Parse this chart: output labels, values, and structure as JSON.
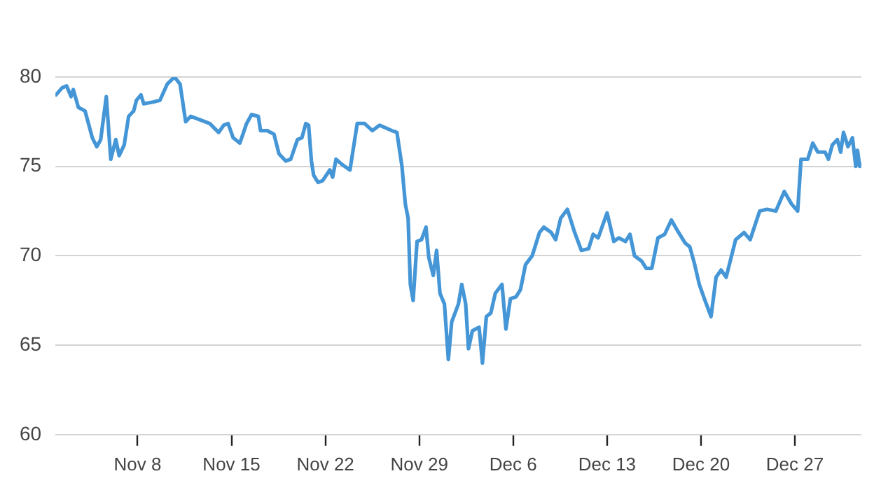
{
  "chart_data": {
    "type": "line",
    "x": [
      "--11-01T22:00",
      "--11-02T09:00",
      "--11-02T17:00",
      "--11-03T01:00",
      "--11-03T05:00",
      "--11-03T14:00",
      "--11-04T02:00",
      "--11-04T15:00",
      "--11-04T23:00",
      "--11-05T06:00",
      "--11-05T16:00",
      "--11-06T00:00",
      "--11-06T09:00",
      "--11-06T15:00",
      "--11-07T00:00",
      "--11-07T08:00",
      "--11-07T17:00",
      "--11-07T22:00",
      "--11-08T06:00",
      "--11-08T11:00",
      "--11-09T04:00",
      "--11-09T16:00",
      "--11-10T05:00",
      "--11-10T18:00",
      "--11-11T04:00",
      "--11-11T14:00",
      "--11-11T23:00",
      "--11-12T16:00",
      "--11-13T09:00",
      "--11-14T01:00",
      "--11-14T10:00",
      "--11-14T18:00",
      "--11-15T03:00",
      "--11-15T15:00",
      "--11-16T03:00",
      "--11-16T12:00",
      "--11-17T00:00",
      "--11-17T04:00",
      "--11-17T16:00",
      "--11-18T04:00",
      "--11-18T13:00",
      "--11-19T01:00",
      "--11-19T10:00",
      "--11-19T22:00",
      "--11-20T06:00",
      "--11-20T13:00",
      "--11-20T18:00",
      "--11-20T23:00",
      "--11-21T03:00",
      "--11-21T11:00",
      "--11-21T19:00",
      "--11-22T08:00",
      "--11-22T13:00",
      "--11-22T19:00",
      "--11-23T06:00",
      "--11-23T20:00",
      "--11-24T09:00",
      "--11-24T22:00",
      "--11-25T12:00",
      "--11-26T01:00",
      "--11-26T23:00",
      "--11-27T08:00",
      "--11-27T17:00",
      "--11-27T23:00",
      "--11-28T04:00",
      "--11-28T08:00",
      "--11-28T13:00",
      "--11-28T20:00",
      "--11-29T04:00",
      "--11-29T12:00",
      "--11-29T17:00",
      "--11-30T01:00",
      "--11-30T07:00",
      "--11-30T13:00",
      "--11-30T21:00",
      "--12-01T04:00",
      "--12-01T10:00",
      "--12-01T22:00",
      "--12-02T04:00",
      "--12-02T11:00",
      "--12-02T16:00",
      "--12-02T23:00",
      "--12-03T11:00",
      "--12-03T17:00",
      "--12-04T00:00",
      "--12-04T08:00",
      "--12-04T16:00",
      "--12-05T04:00",
      "--12-05T11:00",
      "--12-05T19:00",
      "--12-06T05:00",
      "--12-06T13:00",
      "--12-06T22:00",
      "--12-07T10:00",
      "--12-07T23:00",
      "--12-08T07:00",
      "--12-08T20:00",
      "--12-09T04:00",
      "--12-09T13:00",
      "--12-10T01:00",
      "--12-10T14:00",
      "--12-11T02:00",
      "--12-11T15:00",
      "--12-11T23:00",
      "--12-12T08:00",
      "--12-13T00:00",
      "--12-13T12:00",
      "--12-13T21:00",
      "--12-14T09:00",
      "--12-14T17:00",
      "--12-15T01:00",
      "--12-15T14:00",
      "--12-15T22:00",
      "--12-16T08:00",
      "--12-16T19:00",
      "--12-17T07:00",
      "--12-17T19:00",
      "--12-18T08:00",
      "--12-18T20:00",
      "--12-19T04:00",
      "--12-19T12:00",
      "--12-19T21:00",
      "--12-20T06:00",
      "--12-20T18:00",
      "--12-21T03:00",
      "--12-21T12:00",
      "--12-21T21:00",
      "--12-22T14:00",
      "--12-23T05:00",
      "--12-23T16:00",
      "--12-24T09:00",
      "--12-24T22:00",
      "--12-25T14:00",
      "--12-26T05:00",
      "--12-26T18:00",
      "--12-27T05:00",
      "--12-27T11:00",
      "--12-27T23:00",
      "--12-28T08:00",
      "--12-28T17:00",
      "--12-29T06:00",
      "--12-29T12:00",
      "--12-29T19:00",
      "--12-30T04:00",
      "--12-30T10:00",
      "--12-30T15:00",
      "--12-30T23:00",
      "--12-31T07:00",
      "--12-31T13:00",
      "--12-31T16:00",
      "--12-31T20:00",
      "--12-31T23:00"
    ],
    "series": [
      {
        "color": "#4596d6",
        "values": [
          79.0,
          79.4,
          79.5,
          78.9,
          79.3,
          78.3,
          78.1,
          76.6,
          76.1,
          76.5,
          78.9,
          75.4,
          76.5,
          75.6,
          76.2,
          77.8,
          78.1,
          78.7,
          79.0,
          78.5,
          78.6,
          78.7,
          79.6,
          80.0,
          79.6,
          77.5,
          77.8,
          77.6,
          77.4,
          76.9,
          77.3,
          77.4,
          76.6,
          76.3,
          77.4,
          77.9,
          77.8,
          77.0,
          77.0,
          76.8,
          75.7,
          75.3,
          75.4,
          76.5,
          76.6,
          77.4,
          77.3,
          75.3,
          74.5,
          74.1,
          74.2,
          74.8,
          74.4,
          75.4,
          75.1,
          74.8,
          77.4,
          77.4,
          77.0,
          77.3,
          77.0,
          76.9,
          75.0,
          72.9,
          72.1,
          68.4,
          67.5,
          70.8,
          70.9,
          71.6,
          69.9,
          68.9,
          70.3,
          67.9,
          67.3,
          64.2,
          66.3,
          67.3,
          68.4,
          67.3,
          64.8,
          65.8,
          66.0,
          64.0,
          66.6,
          66.8,
          67.9,
          68.4,
          65.9,
          67.6,
          67.7,
          68.1,
          69.5,
          70.0,
          71.3,
          71.6,
          71.3,
          70.9,
          72.1,
          72.6,
          71.3,
          70.3,
          70.4,
          71.2,
          71.0,
          72.4,
          70.8,
          71.0,
          70.8,
          71.2,
          70.0,
          69.7,
          69.3,
          69.3,
          71.0,
          71.2,
          72.0,
          71.3,
          70.7,
          70.5,
          69.6,
          68.4,
          67.6,
          66.6,
          68.8,
          69.2,
          68.8,
          70.9,
          71.3,
          70.9,
          72.5,
          72.6,
          72.5,
          73.6,
          72.9,
          72.5,
          75.4,
          75.4,
          76.3,
          75.8,
          75.8,
          75.4,
          76.2,
          76.5,
          75.8,
          76.9,
          76.1,
          76.6,
          75.0,
          75.9,
          75.0,
          75.1
        ]
      }
    ],
    "xlim": [
      "--11-01T21:00",
      "--12-31T23:00"
    ],
    "xticks": [
      {
        "value": "--11-08",
        "label": "Nov 8"
      },
      {
        "value": "--11-15",
        "label": "Nov 15"
      },
      {
        "value": "--11-22",
        "label": "Nov 22"
      },
      {
        "value": "--11-29",
        "label": "Nov 29"
      },
      {
        "value": "--12-06",
        "label": "Dec 6"
      },
      {
        "value": "--12-13",
        "label": "Dec 13"
      },
      {
        "value": "--12-20",
        "label": "Dec 20"
      },
      {
        "value": "--12-27",
        "label": "Dec 27"
      }
    ],
    "ylim": [
      60,
      80
    ],
    "yticks": [
      60,
      65,
      70,
      75,
      80
    ],
    "grid": "y"
  }
}
